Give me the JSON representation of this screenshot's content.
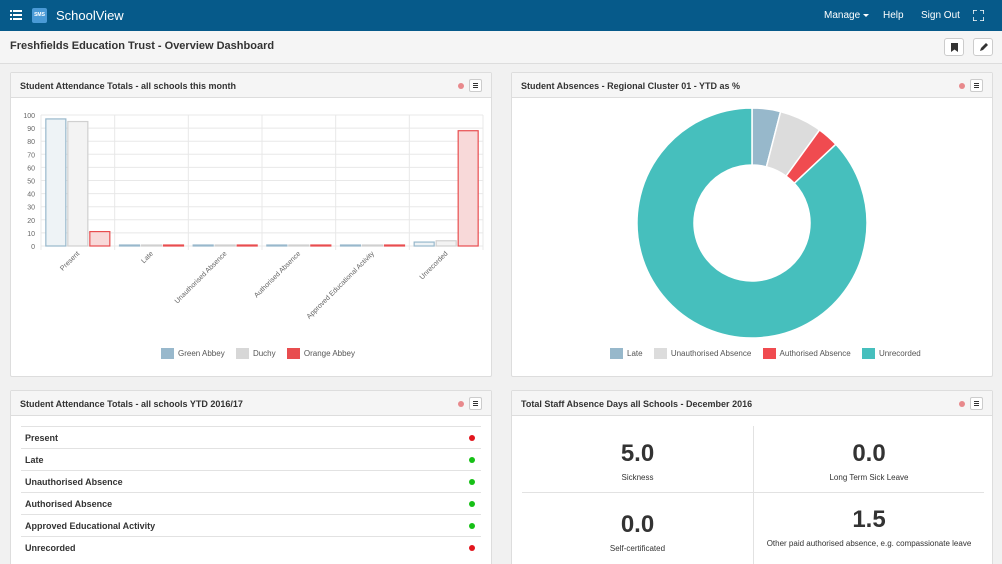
{
  "app": {
    "brand": "SchoolView",
    "logo_text": "SMS",
    "nav": [
      "Manage",
      "Help",
      "Sign Out"
    ]
  },
  "page": {
    "title": "Freshfields Education Trust - Overview Dashboard"
  },
  "panels": {
    "attendance_month": {
      "title": "Student Attendance Totals - all schools this month"
    },
    "absences_regional": {
      "title": "Student Absences - Regional Cluster 01 - YTD as %"
    },
    "attendance_ytd": {
      "title": "Student Attendance Totals - all schools YTD 2016/17",
      "rows": [
        {
          "label": "Present",
          "status": "red"
        },
        {
          "label": "Late",
          "status": "green"
        },
        {
          "label": "Unauthorised Absence",
          "status": "green"
        },
        {
          "label": "Authorised Absence",
          "status": "green"
        },
        {
          "label": "Approved Educational Activity",
          "status": "green"
        },
        {
          "label": "Unrecorded",
          "status": "red"
        }
      ]
    },
    "staff_absence": {
      "title": "Total Staff Absence Days all Schools - December 2016",
      "stats": [
        {
          "value": "5.0",
          "label": "Sickness"
        },
        {
          "value": "0.0",
          "label": "Long Term Sick Leave"
        },
        {
          "value": "0.0",
          "label": "Self-certificated"
        },
        {
          "value": "1.5",
          "label": "Other paid authorised absence, e.g. compassionate leave"
        }
      ]
    }
  },
  "colors": {
    "topbar": "#065a8a",
    "status_red": "#e2151d",
    "status_green": "#16c016",
    "panel_dot": "#e8898c"
  },
  "chart_data": [
    {
      "type": "bar",
      "categories": [
        "Present",
        "Late",
        "Unauthorised Absence",
        "Authorised Absence",
        "Approved Educational Activity",
        "Unrecorded"
      ],
      "series": [
        {
          "name": "Green Abbey",
          "color": "#98b8cc",
          "fill": "#eef3f6",
          "values": [
            97,
            0,
            0,
            0,
            0,
            3
          ]
        },
        {
          "name": "Duchy",
          "color": "#d0d0d0",
          "fill": "#f3f3f3",
          "values": [
            95,
            0,
            0,
            0,
            0,
            4
          ]
        },
        {
          "name": "Orange Abbey",
          "color": "#e84d4f",
          "fill": "#f8d9d9",
          "values": [
            11,
            0,
            0,
            0,
            0,
            88
          ]
        }
      ],
      "yticks": [
        0,
        10,
        20,
        30,
        40,
        50,
        60,
        70,
        80,
        90,
        100
      ],
      "ylim": [
        0,
        100
      ],
      "grid": true,
      "legend": "bottom"
    },
    {
      "type": "pie",
      "donut": true,
      "slices": [
        {
          "name": "Late",
          "value": 4,
          "color": "#97b8cb"
        },
        {
          "name": "Unauthorised Absence",
          "value": 6,
          "color": "#dcdcdc"
        },
        {
          "name": "Authorised Absence",
          "value": 3,
          "color": "#f04b50"
        },
        {
          "name": "Unrecorded",
          "value": 87,
          "color": "#46bfbd"
        }
      ],
      "legend": "bottom"
    }
  ]
}
